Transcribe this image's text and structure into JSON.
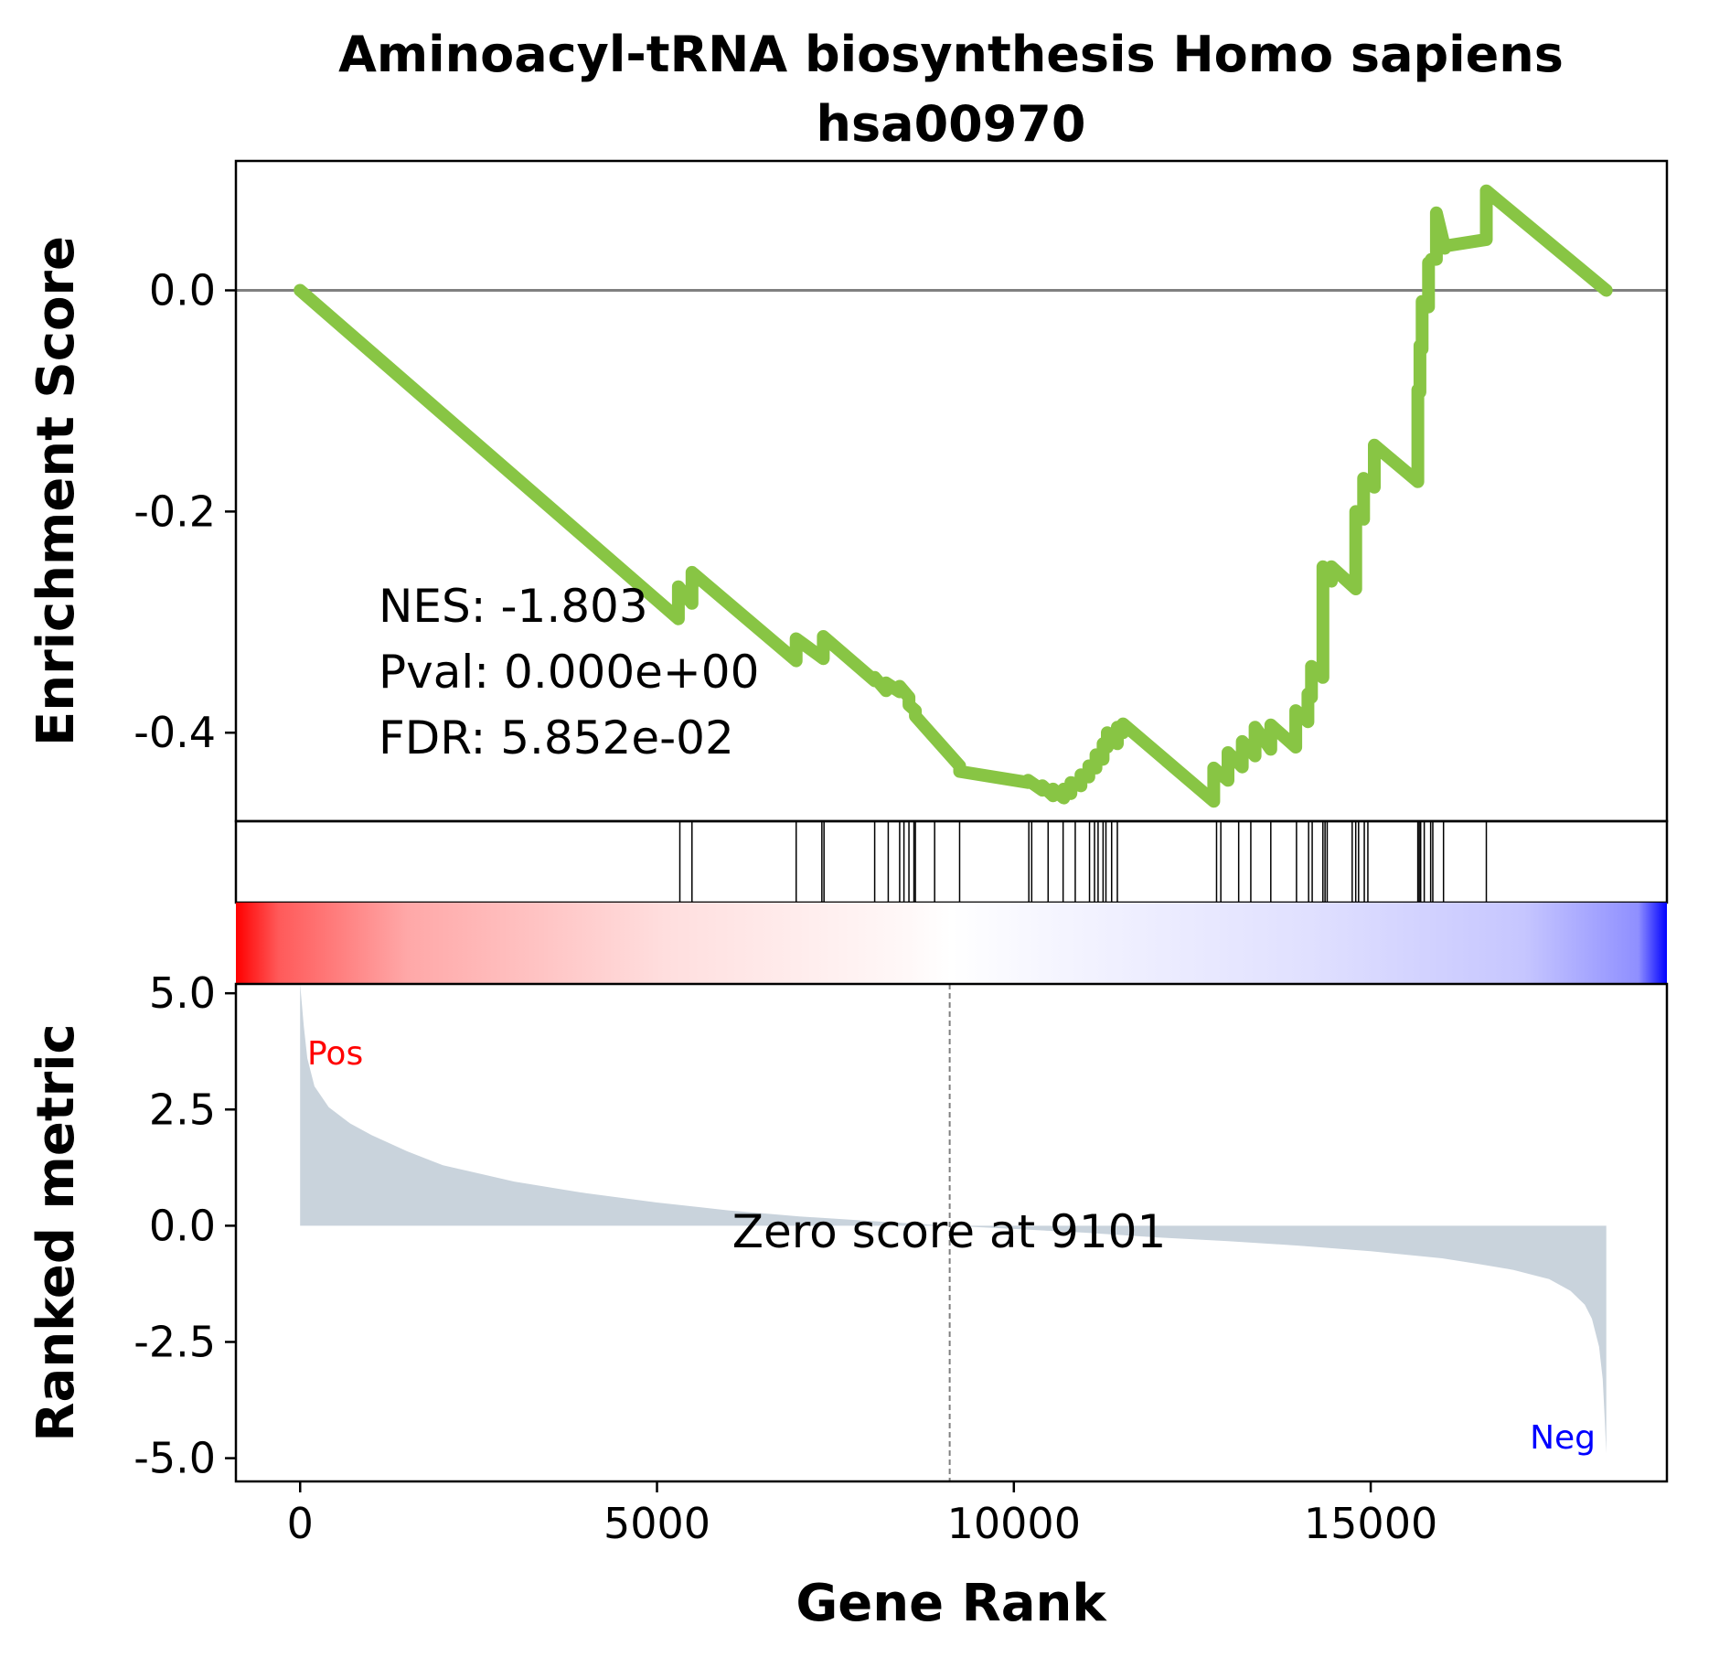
{
  "chart_data": {
    "type": "line",
    "title_line1": "Aminoacyl-tRNA biosynthesis Homo sapiens",
    "title_line2": "hsa00970",
    "xlabel": "Gene Rank",
    "ylabel_top": "Enrichment Score",
    "ylabel_bottom": "Ranked metric",
    "xlim": [
      -900,
      19150
    ],
    "x_ticks": [
      0,
      5000,
      10000,
      15000
    ],
    "x_tick_labels": [
      "0",
      "5000",
      "10000",
      "15000"
    ],
    "es_ylim": [
      -0.48,
      0.117
    ],
    "es_ticks": [
      0.0,
      -0.2,
      -0.4
    ],
    "es_tick_labels": [
      "0.0",
      "-0.2",
      "-0.4"
    ],
    "metric_ylim": [
      -5.5,
      5.2
    ],
    "metric_ticks": [
      5.0,
      2.5,
      0.0,
      -2.5,
      -5.0
    ],
    "metric_tick_labels": [
      "5.0",
      "2.5",
      "0.0",
      "-2.5",
      "-5.0"
    ],
    "stats": {
      "nes": "NES: -1.803",
      "pval": "Pval: 0.000e+00",
      "fdr": "FDR: 5.852e-02"
    },
    "zero_score_label": "Zero score at 9101",
    "zero_score_rank": 9101,
    "pos_label": "Pos",
    "neg_label": "Neg",
    "colors": {
      "es_line": "#88c544",
      "metric_fill": "#c9d3dc",
      "zero_line": "#808080",
      "pos": "#ff0000",
      "neg": "#0000ff"
    },
    "running_es": {
      "x": [
        0,
        5300,
        5300,
        5490,
        5490,
        6950,
        6950,
        7330,
        7330,
        8050,
        8050,
        8210,
        8210,
        8400,
        8400,
        8530,
        8530,
        8620,
        8620,
        9240,
        9240,
        10200,
        10200,
        10400,
        10400,
        10550,
        10550,
        10700,
        10700,
        10800,
        10800,
        10940,
        10940,
        11050,
        11050,
        11150,
        11150,
        11250,
        11250,
        11310,
        11310,
        11450,
        11450,
        11530,
        11530,
        12800,
        12800,
        13000,
        13000,
        13200,
        13200,
        13380,
        13380,
        13600,
        13600,
        13950,
        13950,
        14120,
        14120,
        14170,
        14170,
        14330,
        14330,
        14390,
        14390,
        14450,
        14450,
        14790,
        14790,
        14900,
        14900,
        15050,
        15050,
        15660,
        15660,
        15690,
        15690,
        15720,
        15720,
        15810,
        15810,
        15850,
        15850,
        15920,
        15920,
        16040,
        16040,
        16620,
        16620,
        18300
      ],
      "y": [
        0.0,
        -0.297,
        -0.268,
        -0.283,
        -0.255,
        -0.335,
        -0.315,
        -0.333,
        -0.313,
        -0.353,
        -0.35,
        -0.362,
        -0.355,
        -0.363,
        -0.358,
        -0.368,
        -0.375,
        -0.38,
        -0.385,
        -0.43,
        -0.435,
        -0.445,
        -0.443,
        -0.452,
        -0.448,
        -0.457,
        -0.451,
        -0.459,
        -0.451,
        -0.455,
        -0.445,
        -0.448,
        -0.438,
        -0.44,
        -0.43,
        -0.432,
        -0.42,
        -0.424,
        -0.41,
        -0.413,
        -0.4,
        -0.41,
        -0.395,
        -0.4,
        -0.392,
        -0.462,
        -0.432,
        -0.443,
        -0.418,
        -0.431,
        -0.408,
        -0.421,
        -0.395,
        -0.415,
        -0.393,
        -0.413,
        -0.38,
        -0.39,
        -0.365,
        -0.368,
        -0.34,
        -0.35,
        -0.25,
        -0.253,
        -0.26,
        -0.263,
        -0.25,
        -0.27,
        -0.2,
        -0.207,
        -0.17,
        -0.178,
        -0.14,
        -0.173,
        -0.09,
        -0.092,
        -0.05,
        -0.053,
        -0.01,
        -0.015,
        0.025,
        0.027,
        0.028,
        0.028,
        0.07,
        0.038,
        0.04,
        0.046,
        0.09,
        0.0
      ]
    },
    "hit_ranks": [
      5320,
      5490,
      6950,
      7310,
      7340,
      8050,
      8240,
      8400,
      8460,
      8530,
      8600,
      8620,
      8890,
      9240,
      10210,
      10250,
      10480,
      10690,
      10860,
      11060,
      11130,
      11180,
      11250,
      11290,
      11370,
      11450,
      12840,
      12900,
      13150,
      13320,
      13600,
      13960,
      14130,
      14180,
      14330,
      14360,
      14390,
      14740,
      14790,
      14830,
      14910,
      14960,
      15660,
      15680,
      15700,
      15750,
      15840,
      15870,
      16020,
      16620
    ],
    "ranked_metric": {
      "x": [
        0,
        0,
        50,
        100,
        200,
        400,
        700,
        1000,
        1500,
        2000,
        3000,
        4000,
        5000,
        6000,
        7000,
        8000,
        9101,
        10000,
        11000,
        12000,
        13000,
        14000,
        15000,
        16000,
        16500,
        17000,
        17500,
        17800,
        18000,
        18100,
        18200,
        18250,
        18280,
        18300,
        18300
      ],
      "y": [
        0,
        5.2,
        4.3,
        3.6,
        3.0,
        2.55,
        2.2,
        1.95,
        1.6,
        1.3,
        0.95,
        0.7,
        0.5,
        0.33,
        0.2,
        0.1,
        0.0,
        -0.07,
        -0.15,
        -0.25,
        -0.33,
        -0.43,
        -0.55,
        -0.7,
        -0.82,
        -0.95,
        -1.15,
        -1.4,
        -1.7,
        -2.0,
        -2.6,
        -3.3,
        -4.2,
        -4.9,
        0
      ]
    }
  }
}
